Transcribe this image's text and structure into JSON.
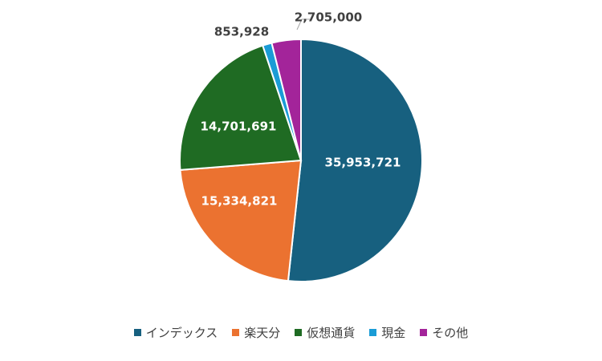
{
  "chart_data": {
    "type": "pie",
    "title": "",
    "legend_position": "bottom",
    "slices": [
      {
        "name": "インデックス",
        "value": 35953721,
        "label": "35,953,721",
        "color": "#17607F",
        "label_color": "#FFFFFF"
      },
      {
        "name": "楽天分",
        "value": 15334821,
        "label": "15,334,821",
        "color": "#EB7230",
        "label_color": "#FFFFFF"
      },
      {
        "name": "仮想通貨",
        "value": 14701691,
        "label": "14,701,691",
        "color": "#1F6B23",
        "label_color": "#FFFFFF"
      },
      {
        "name": "現金",
        "value": 853928,
        "label": "853,928",
        "color": "#1A9CD6",
        "label_color": "#404040"
      },
      {
        "name": "その他",
        "value": 2705000,
        "label": "2,705,000",
        "color": "#A3249A",
        "label_color": "#404040"
      }
    ]
  }
}
